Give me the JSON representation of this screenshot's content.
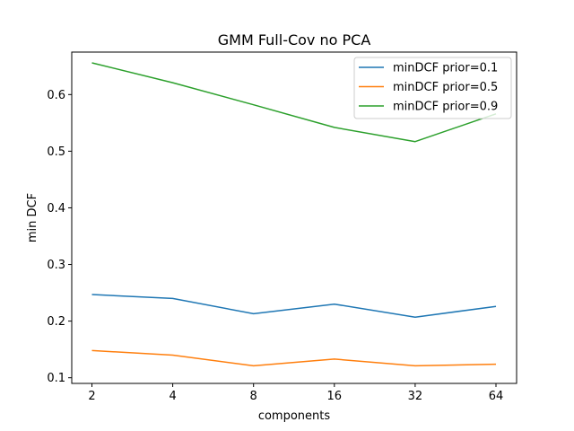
{
  "chart_data": {
    "type": "line",
    "title": "GMM Full-Cov no PCA",
    "xlabel": "components",
    "ylabel": "min DCF",
    "categories": [
      "2",
      "4",
      "8",
      "16",
      "32",
      "64"
    ],
    "ylim": [
      0.09,
      0.675
    ],
    "yticks": [
      "0.1",
      "0.2",
      "0.3",
      "0.4",
      "0.5",
      "0.6"
    ],
    "ytick_values": [
      0.1,
      0.2,
      0.3,
      0.4,
      0.5,
      0.6
    ],
    "grid": false,
    "legend_position": "top-right",
    "series": [
      {
        "name": "minDCF prior=0.1",
        "color": "#1f77b4",
        "values": [
          0.247,
          0.24,
          0.213,
          0.23,
          0.207,
          0.226
        ]
      },
      {
        "name": "minDCF prior=0.5",
        "color": "#ff7f0e",
        "values": [
          0.148,
          0.14,
          0.121,
          0.133,
          0.121,
          0.124
        ]
      },
      {
        "name": "minDCF prior=0.9",
        "color": "#2ca02c",
        "values": [
          0.656,
          0.621,
          0.582,
          0.542,
          0.517,
          0.566
        ]
      }
    ]
  }
}
